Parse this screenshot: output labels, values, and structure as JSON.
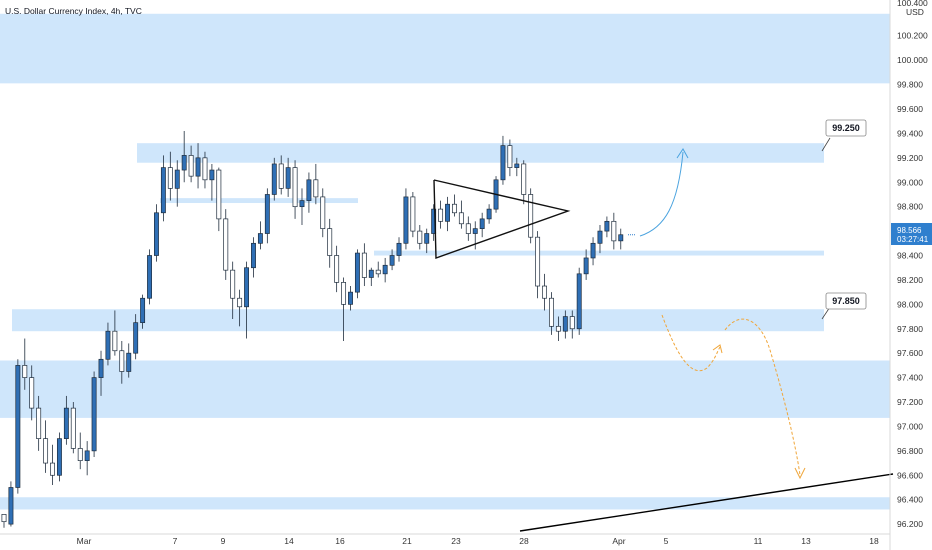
{
  "chart_data": {
    "type": "candlestick",
    "title": "U.S. Dollar Currency Index, 4h, TVC",
    "currency_label": "USD",
    "top_axis_label": "100.400",
    "y_ticks": [
      "100.200",
      "100.000",
      "99.800",
      "99.600",
      "99.400",
      "99.200",
      "99.000",
      "98.800",
      "98.600",
      "98.400",
      "98.200",
      "98.000",
      "97.800",
      "97.600",
      "97.400",
      "97.200",
      "97.000",
      "96.800",
      "96.600",
      "96.400",
      "96.200"
    ],
    "ylim": [
      96.16,
      100.46
    ],
    "x_ticks": [
      "Mar",
      "7",
      "9",
      "14",
      "16",
      "21",
      "23",
      "28",
      "Apr",
      "5",
      "11",
      "13",
      "18"
    ],
    "last_price": "98.566",
    "countdown": "03:27:41",
    "callouts": [
      {
        "name": "upper-level",
        "text": "99.250"
      },
      {
        "name": "lower-level",
        "text": "97.850"
      }
    ],
    "zones": [
      {
        "name": "top-resistance-zone",
        "from": 99.81,
        "to": 100.38
      },
      {
        "name": "resistance-zone-99250",
        "from": 99.16,
        "to": 99.32
      },
      {
        "name": "minor-zone-98850",
        "from": 98.83,
        "to": 98.87
      },
      {
        "name": "pivot-zone-98420",
        "from": 98.4,
        "to": 98.44
      },
      {
        "name": "support-zone-97850",
        "from": 97.78,
        "to": 97.96
      },
      {
        "name": "support-zone-97300",
        "from": 97.07,
        "to": 97.54
      },
      {
        "name": "bottom-support-zone",
        "from": 96.32,
        "to": 96.42
      }
    ],
    "candles": [
      [
        96.28,
        96.28,
        96.17,
        96.22
      ],
      [
        96.2,
        96.55,
        96.18,
        96.5
      ],
      [
        96.5,
        97.55,
        96.45,
        97.5
      ],
      [
        97.5,
        97.72,
        97.3,
        97.4
      ],
      [
        97.4,
        97.5,
        97.05,
        97.15
      ],
      [
        97.15,
        97.25,
        96.8,
        96.9
      ],
      [
        96.9,
        97.05,
        96.62,
        96.7
      ],
      [
        96.7,
        96.85,
        96.52,
        96.6
      ],
      [
        96.6,
        96.95,
        96.55,
        96.9
      ],
      [
        96.9,
        97.25,
        96.85,
        97.15
      ],
      [
        97.15,
        97.2,
        96.78,
        96.82
      ],
      [
        96.82,
        96.95,
        96.65,
        96.72
      ],
      [
        96.72,
        96.88,
        96.6,
        96.8
      ],
      [
        96.8,
        97.45,
        96.75,
        97.4
      ],
      [
        97.4,
        97.62,
        97.25,
        97.55
      ],
      [
        97.55,
        97.85,
        97.5,
        97.78
      ],
      [
        97.78,
        97.95,
        97.58,
        97.62
      ],
      [
        97.62,
        97.7,
        97.35,
        97.45
      ],
      [
        97.45,
        97.68,
        97.4,
        97.6
      ],
      [
        97.6,
        97.92,
        97.55,
        97.85
      ],
      [
        97.85,
        98.08,
        97.8,
        98.05
      ],
      [
        98.05,
        98.45,
        98.0,
        98.4
      ],
      [
        98.4,
        98.82,
        98.35,
        98.75
      ],
      [
        98.75,
        99.22,
        98.68,
        99.12
      ],
      [
        99.12,
        99.25,
        98.85,
        98.95
      ],
      [
        98.95,
        99.18,
        98.8,
        99.1
      ],
      [
        99.1,
        99.42,
        99.0,
        99.22
      ],
      [
        99.22,
        99.3,
        99.0,
        99.05
      ],
      [
        99.05,
        99.32,
        98.95,
        99.2
      ],
      [
        99.2,
        99.25,
        98.95,
        99.02
      ],
      [
        99.02,
        99.15,
        98.85,
        99.1
      ],
      [
        99.1,
        99.12,
        98.6,
        98.7
      ],
      [
        98.7,
        98.78,
        98.2,
        98.28
      ],
      [
        98.28,
        98.35,
        97.88,
        98.05
      ],
      [
        98.05,
        98.12,
        97.82,
        97.98
      ],
      [
        97.98,
        98.35,
        97.72,
        98.3
      ],
      [
        98.3,
        98.55,
        98.22,
        98.5
      ],
      [
        98.5,
        98.68,
        98.45,
        98.58
      ],
      [
        98.58,
        98.95,
        98.5,
        98.9
      ],
      [
        98.9,
        99.2,
        98.85,
        99.15
      ],
      [
        99.15,
        99.22,
        98.9,
        98.95
      ],
      [
        98.95,
        99.2,
        98.88,
        99.12
      ],
      [
        99.12,
        99.18,
        98.7,
        98.8
      ],
      [
        98.8,
        98.95,
        98.65,
        98.85
      ],
      [
        98.85,
        99.08,
        98.75,
        99.02
      ],
      [
        99.02,
        99.15,
        98.82,
        98.88
      ],
      [
        98.88,
        98.95,
        98.55,
        98.62
      ],
      [
        98.62,
        98.7,
        98.3,
        98.4
      ],
      [
        98.4,
        98.48,
        98.1,
        98.18
      ],
      [
        98.18,
        98.22,
        97.7,
        98.0
      ],
      [
        98.0,
        98.15,
        97.95,
        98.1
      ],
      [
        98.1,
        98.45,
        98.05,
        98.42
      ],
      [
        98.42,
        98.5,
        98.15,
        98.22
      ],
      [
        98.22,
        98.3,
        98.15,
        98.28
      ],
      [
        98.28,
        98.35,
        98.22,
        98.25
      ],
      [
        98.25,
        98.38,
        98.18,
        98.32
      ],
      [
        98.32,
        98.45,
        98.28,
        98.4
      ],
      [
        98.4,
        98.55,
        98.35,
        98.5
      ],
      [
        98.5,
        98.95,
        98.45,
        98.88
      ],
      [
        98.88,
        98.92,
        98.55,
        98.6
      ],
      [
        98.6,
        98.65,
        98.45,
        98.5
      ],
      [
        98.5,
        98.62,
        98.42,
        98.58
      ],
      [
        98.58,
        98.82,
        98.52,
        98.78
      ],
      [
        98.78,
        98.85,
        98.62,
        98.68
      ],
      [
        98.68,
        98.88,
        98.6,
        98.82
      ],
      [
        98.82,
        98.9,
        98.72,
        98.75
      ],
      [
        98.75,
        98.85,
        98.62,
        98.66
      ],
      [
        98.66,
        98.72,
        98.52,
        98.58
      ],
      [
        98.58,
        98.68,
        98.45,
        98.62
      ],
      [
        98.62,
        98.75,
        98.55,
        98.7
      ],
      [
        98.7,
        98.82,
        98.66,
        98.78
      ],
      [
        98.78,
        99.05,
        98.75,
        99.02
      ],
      [
        99.02,
        99.38,
        98.98,
        99.3
      ],
      [
        99.3,
        99.35,
        99.05,
        99.12
      ],
      [
        99.12,
        99.2,
        99.05,
        99.15
      ],
      [
        99.15,
        99.18,
        98.82,
        98.9
      ],
      [
        98.9,
        98.95,
        98.5,
        98.55
      ],
      [
        98.55,
        98.6,
        98.05,
        98.15
      ],
      [
        98.15,
        98.25,
        97.95,
        98.05
      ],
      [
        98.05,
        98.1,
        97.75,
        97.82
      ],
      [
        97.82,
        97.9,
        97.7,
        97.78
      ],
      [
        97.78,
        97.95,
        97.72,
        97.9
      ],
      [
        97.9,
        97.95,
        97.72,
        97.8
      ],
      [
        97.8,
        98.3,
        97.75,
        98.25
      ],
      [
        98.25,
        98.45,
        98.2,
        98.38
      ],
      [
        98.38,
        98.55,
        98.32,
        98.5
      ],
      [
        98.5,
        98.65,
        98.42,
        98.6
      ],
      [
        98.6,
        98.72,
        98.55,
        98.68
      ],
      [
        98.68,
        98.75,
        98.45,
        98.52
      ],
      [
        98.52,
        98.62,
        98.45,
        98.57
      ]
    ],
    "projections": [
      {
        "name": "bullish-projection",
        "color": "#4aa3df"
      },
      {
        "name": "bearish-projection",
        "color": "#f0a63a"
      }
    ],
    "colors": {
      "zone": "#cfe6fb",
      "candle_up": "#2f6fb5",
      "candle_down": "#ffffff",
      "wick": "#1f2d3d",
      "price_tag": "#2f7fce",
      "trendline": "#000000"
    }
  }
}
